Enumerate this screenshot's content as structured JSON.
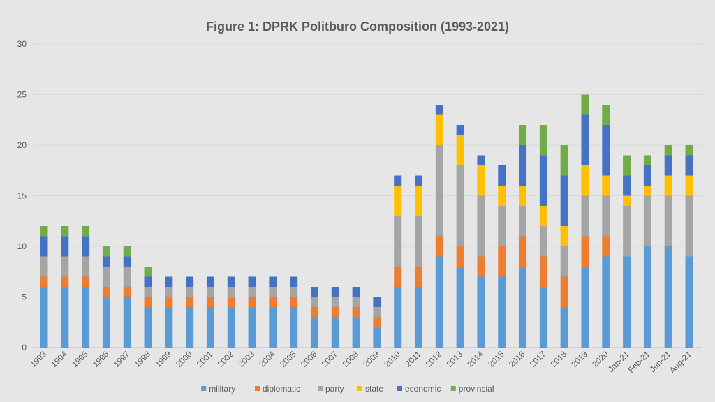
{
  "chart_data": {
    "type": "stacked-bar",
    "title": "Figure 1: DPRK Politburo Composition (1993-2021)",
    "xlabel": "",
    "ylabel": "",
    "ylim": [
      0,
      30
    ],
    "yticks": [
      0,
      5,
      10,
      15,
      20,
      25,
      30
    ],
    "grid": true,
    "legend": "bottom",
    "categories": [
      "1993",
      "1994",
      "1995",
      "1996",
      "1997",
      "1998",
      "1999",
      "2000",
      "2001",
      "2002",
      "2003",
      "2004",
      "2005",
      "2006",
      "2007",
      "2008",
      "2009",
      "2010",
      "2011",
      "2012",
      "2013",
      "2014",
      "2015",
      "2016",
      "2017",
      "2018",
      "2019",
      "2020",
      "Jan-21",
      "Feb-21",
      "Jun-21",
      "Aug-21"
    ],
    "series": [
      {
        "name": "military",
        "color": "#5B9BD5",
        "values": [
          6,
          6,
          6,
          5,
          5,
          4,
          4,
          4,
          4,
          4,
          4,
          4,
          4,
          3,
          3,
          3,
          2,
          6,
          6,
          9,
          8,
          7,
          7,
          8,
          6,
          4,
          8,
          9,
          9,
          10,
          10,
          9
        ]
      },
      {
        "name": "diplomatic",
        "color": "#ED7D31",
        "values": [
          1,
          1,
          1,
          1,
          1,
          1,
          1,
          1,
          1,
          1,
          1,
          1,
          1,
          1,
          1,
          1,
          1,
          2,
          2,
          2,
          2,
          2,
          3,
          3,
          3,
          3,
          3,
          2,
          0,
          0,
          0,
          0
        ]
      },
      {
        "name": "party",
        "color": "#A5A5A5",
        "values": [
          2,
          2,
          2,
          2,
          2,
          1,
          1,
          1,
          1,
          1,
          1,
          1,
          1,
          1,
          1,
          1,
          1,
          5,
          5,
          9,
          8,
          6,
          4,
          3,
          3,
          3,
          4,
          4,
          5,
          5,
          5,
          6
        ]
      },
      {
        "name": "state",
        "color": "#FFC000",
        "values": [
          0,
          0,
          0,
          0,
          0,
          0,
          0,
          0,
          0,
          0,
          0,
          0,
          0,
          0,
          0,
          0,
          0,
          3,
          3,
          3,
          3,
          3,
          2,
          2,
          2,
          2,
          3,
          2,
          1,
          1,
          2,
          2
        ]
      },
      {
        "name": "economic",
        "color": "#4472C4",
        "values": [
          2,
          2,
          2,
          1,
          1,
          1,
          1,
          1,
          1,
          1,
          1,
          1,
          1,
          1,
          1,
          1,
          1,
          1,
          1,
          1,
          1,
          1,
          2,
          4,
          5,
          5,
          5,
          5,
          2,
          2,
          2,
          2
        ]
      },
      {
        "name": "provincial",
        "color": "#70AD47",
        "values": [
          1,
          1,
          1,
          1,
          1,
          1,
          0,
          0,
          0,
          0,
          0,
          0,
          0,
          0,
          0,
          0,
          0,
          0,
          0,
          0,
          0,
          0,
          0,
          2,
          3,
          3,
          2,
          2,
          2,
          1,
          1,
          1
        ]
      }
    ]
  }
}
